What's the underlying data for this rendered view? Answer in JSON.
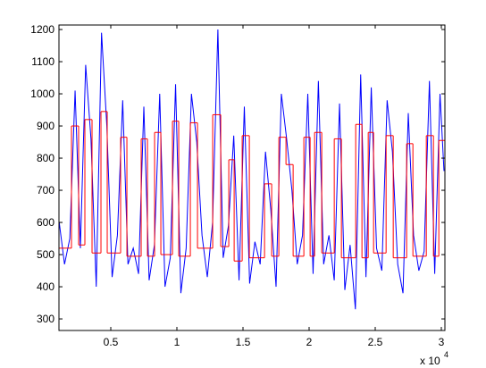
{
  "chart_data": {
    "type": "line",
    "xlim": [
      1080,
      30270
    ],
    "ylim": [
      264,
      1214
    ],
    "xticks": [
      {
        "value": 5000,
        "label": "0.5"
      },
      {
        "value": 10000,
        "label": "1"
      },
      {
        "value": 15000,
        "label": "1.5"
      },
      {
        "value": 20000,
        "label": "2"
      },
      {
        "value": 25000,
        "label": "2.5"
      },
      {
        "value": 30000,
        "label": "3"
      }
    ],
    "yticks": [
      300,
      400,
      500,
      600,
      700,
      800,
      900,
      1000,
      1100,
      1200
    ],
    "x_multiplier": {
      "base": "x 10",
      "exponent": "4"
    },
    "series": [
      {
        "color": "#0000ff",
        "x": [
          1100,
          1500,
          1900,
          2300,
          2700,
          3100,
          3500,
          3900,
          4300,
          4700,
          5100,
          5500,
          5900,
          6300,
          6700,
          7100,
          7500,
          7900,
          8300,
          8700,
          9100,
          9500,
          9900,
          10300,
          10700,
          11100,
          11500,
          11900,
          12300,
          12700,
          13100,
          13500,
          13900,
          14300,
          14700,
          15100,
          15500,
          15900,
          16300,
          16700,
          17100,
          17500,
          17900,
          18300,
          18700,
          19100,
          19500,
          19900,
          20300,
          20700,
          21100,
          21500,
          21900,
          22300,
          22700,
          23100,
          23500,
          23900,
          24300,
          24700,
          25100,
          25500,
          25900,
          26300,
          26700,
          27100,
          27500,
          27900,
          28300,
          28700,
          29100,
          29500,
          29900,
          30200
        ],
        "values": [
          600,
          470,
          550,
          1010,
          520,
          1090,
          860,
          400,
          1190,
          900,
          430,
          560,
          980,
          470,
          520,
          440,
          960,
          420,
          530,
          1000,
          400,
          490,
          1030,
          380,
          520,
          1000,
          850,
          560,
          430,
          600,
          1200,
          490,
          590,
          870,
          420,
          960,
          410,
          540,
          470,
          820,
          640,
          400,
          1000,
          860,
          700,
          470,
          560,
          1000,
          440,
          1040,
          470,
          560,
          420,
          970,
          390,
          530,
          330,
          1060,
          430,
          1020,
          520,
          450,
          980,
          820,
          470,
          380,
          940,
          560,
          450,
          510,
          1040,
          440,
          1000,
          760
        ]
      },
      {
        "color": "#ff0000",
        "step": true,
        "edges": [
          1080,
          2026,
          2567,
          3040,
          3581,
          4257,
          4730,
          5744,
          6218,
          7299,
          7772,
          8313,
          8786,
          9665,
          10138,
          11017,
          11558,
          12707,
          13316,
          13924,
          14330,
          14938,
          15479,
          16628,
          17168,
          17710,
          18250,
          18791,
          19602,
          20076,
          20414,
          20955,
          21901,
          22442,
          23524,
          23996,
          24470,
          24875,
          25822,
          26362,
          27376,
          27850,
          28864,
          29404,
          29810,
          30270
        ],
        "values": [
          520,
          900,
          530,
          920,
          505,
          945,
          505,
          865,
          495,
          860,
          495,
          880,
          500,
          915,
          495,
          910,
          520,
          935,
          525,
          795,
          480,
          870,
          490,
          720,
          495,
          865,
          780,
          495,
          865,
          495,
          880,
          505,
          860,
          490,
          905,
          490,
          880,
          505,
          870,
          490,
          845,
          495,
          870,
          495,
          855
        ]
      }
    ]
  }
}
